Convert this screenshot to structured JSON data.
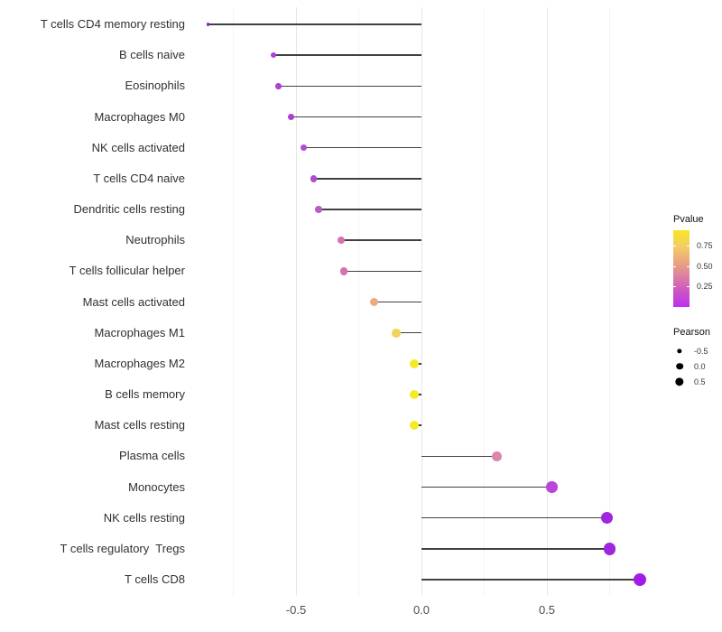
{
  "chart_data": {
    "type": "scatter",
    "variant": "lollipop",
    "orientation": "horizontal",
    "title": "",
    "xlabel": "",
    "ylabel": "",
    "grid": "vertical-only",
    "background": "#ffffff",
    "stem_color": "#404040",
    "xlim": [
      -0.92,
      0.94
    ],
    "x_ticks": [
      -0.5,
      0.0,
      0.5
    ],
    "x_tick_labels": [
      "-0.5",
      "0.0",
      "0.5"
    ],
    "x_minor_ticks": [
      -0.75,
      -0.25,
      0.25,
      0.75
    ],
    "points": [
      {
        "label": "T cells CD4 memory resting",
        "pearson": -0.85,
        "pvalue_approx": 0.01,
        "color": "#8726c9"
      },
      {
        "label": "B cells naive",
        "pearson": -0.59,
        "pvalue_approx": 0.1,
        "color": "#ac40d7"
      },
      {
        "label": "Eosinophils",
        "pearson": -0.57,
        "pvalue_approx": 0.1,
        "color": "#ac40d7"
      },
      {
        "label": "Macrophages M0",
        "pearson": -0.52,
        "pvalue_approx": 0.12,
        "color": "#aa3ed5"
      },
      {
        "label": "NK cells activated",
        "pearson": -0.47,
        "pvalue_approx": 0.15,
        "color": "#b24dd3"
      },
      {
        "label": "T cells CD4 naive",
        "pearson": -0.43,
        "pvalue_approx": 0.15,
        "color": "#b04bd3"
      },
      {
        "label": "Dendritic cells resting",
        "pearson": -0.41,
        "pvalue_approx": 0.2,
        "color": "#bc58ca"
      },
      {
        "label": "Neutrophils",
        "pearson": -0.32,
        "pvalue_approx": 0.35,
        "color": "#d673af"
      },
      {
        "label": "T cells follicular helper",
        "pearson": -0.31,
        "pvalue_approx": 0.35,
        "color": "#d673af"
      },
      {
        "label": "Mast cells activated",
        "pearson": -0.19,
        "pvalue_approx": 0.55,
        "color": "#ecaa7d"
      },
      {
        "label": "Macrophages M1",
        "pearson": -0.1,
        "pvalue_approx": 0.7,
        "color": "#f1d35f"
      },
      {
        "label": "Macrophages M2",
        "pearson": -0.03,
        "pvalue_approx": 0.9,
        "color": "#f8e926"
      },
      {
        "label": "B cells memory",
        "pearson": -0.03,
        "pvalue_approx": 0.9,
        "color": "#f8e926"
      },
      {
        "label": "Mast cells resting",
        "pearson": -0.03,
        "pvalue_approx": 0.9,
        "color": "#f8e926"
      },
      {
        "label": "Plasma cells",
        "pearson": 0.3,
        "pvalue_approx": 0.4,
        "color": "#db86ae"
      },
      {
        "label": "Monocytes",
        "pearson": 0.52,
        "pvalue_approx": 0.13,
        "color": "#bb45da"
      },
      {
        "label": "NK cells resting",
        "pearson": 0.74,
        "pvalue_approx": 0.05,
        "color": "#9e27de"
      },
      {
        "label": "T cells regulatory  Tregs",
        "pearson": 0.75,
        "pvalue_approx": 0.05,
        "color": "#9e27de"
      },
      {
        "label": "T cells CD8",
        "pearson": 0.87,
        "pvalue_approx": 0.02,
        "color": "#a21ce8"
      }
    ],
    "legends": {
      "pvalue": {
        "title": "Pvalue",
        "tick_labels": [
          "0.75",
          "0.50",
          "0.25"
        ],
        "tick_values": [
          0.75,
          0.5,
          0.25
        ],
        "range": [
          0.0,
          0.95
        ],
        "gradient_stops_top_to_bottom": [
          "#f9e721",
          "#f3cf62",
          "#eba87e",
          "#dd7fa0",
          "#cb54c4",
          "#bf2ff2"
        ]
      },
      "pearson": {
        "title": "Pearson",
        "items": [
          {
            "label": "-0.5",
            "value": -0.5
          },
          {
            "label": "0.0",
            "value": 0.0
          },
          {
            "label": "0.5",
            "value": 0.5
          }
        ],
        "dot_color": "#000000"
      }
    }
  }
}
